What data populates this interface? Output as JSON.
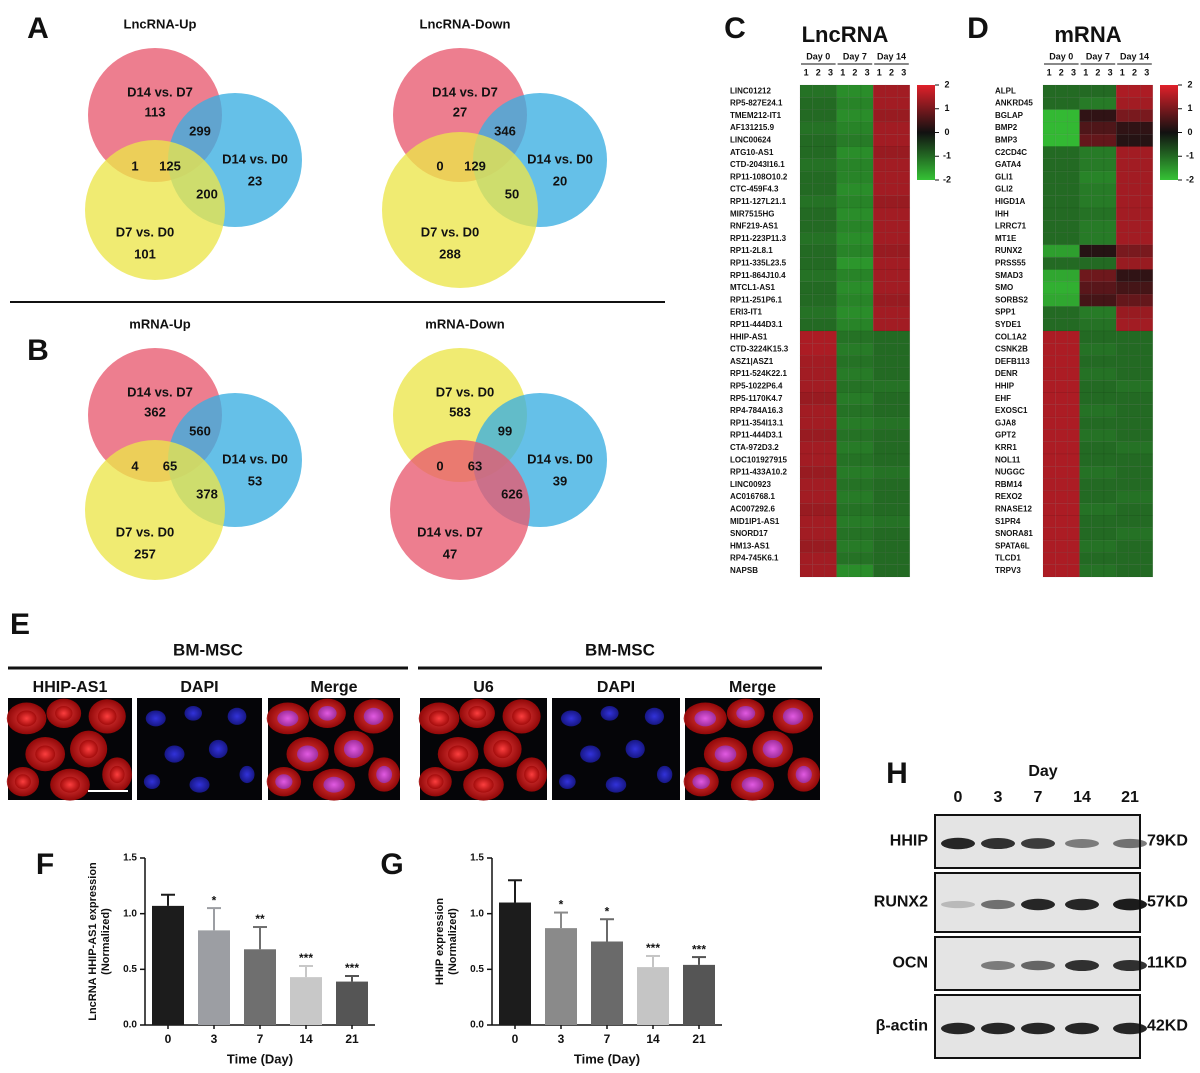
{
  "panels": {
    "A": {
      "letter": "A",
      "venns": [
        {
          "title": "LncRNA-Up",
          "sets": [
            {
              "label": "D14 vs. D7",
              "count": 113,
              "color": "#e85a70"
            },
            {
              "label": "D14 vs. D0",
              "count": 23,
              "color": "#3aaee2"
            },
            {
              "label": "D7 vs. D0",
              "count": 101,
              "color": "#ece64a"
            }
          ],
          "overlaps": [
            299,
            1,
            125,
            200
          ]
        },
        {
          "title": "LncRNA-Down",
          "sets": [
            {
              "label": "D14 vs. D7",
              "count": 27,
              "color": "#e85a70"
            },
            {
              "label": "D14 vs. D0",
              "count": 20,
              "color": "#3aaee2"
            },
            {
              "label": "D7 vs. D0",
              "count": 288,
              "color": "#ece64a"
            }
          ],
          "overlaps": [
            346,
            0,
            129,
            50
          ]
        }
      ]
    },
    "B": {
      "letter": "B",
      "venns": [
        {
          "title": "mRNA-Up",
          "sets": [
            {
              "label": "D14 vs. D7",
              "count": 362,
              "color": "#e85a70"
            },
            {
              "label": "D14 vs. D0",
              "count": 53,
              "color": "#3aaee2"
            },
            {
              "label": "D7 vs. D0",
              "count": 257,
              "color": "#ece64a"
            }
          ],
          "overlaps": [
            560,
            4,
            65,
            378
          ]
        },
        {
          "title": "mRNA-Down",
          "sets": [
            {
              "label": "D7 vs. D0",
              "count": 583,
              "color": "#ece64a"
            },
            {
              "label": "D14 vs. D0",
              "count": 39,
              "color": "#3aaee2"
            },
            {
              "label": "D14 vs. D7",
              "count": 47,
              "color": "#e85a70"
            }
          ],
          "overlaps": [
            99,
            0,
            63,
            626
          ]
        }
      ]
    },
    "C": {
      "letter": "C",
      "title": "LncRNA",
      "groups": [
        "Day 0",
        "Day 7",
        "Day 14"
      ],
      "replicates": [
        "1",
        "2",
        "3"
      ],
      "rows": [
        "LINC01212",
        "RP5-827E24.1",
        "TMEM212-IT1",
        "AF131215.9",
        "LINC00624",
        "ATG10-AS1",
        "CTD-2043I16.1",
        "RP11-108O10.2",
        "CTC-459F4.3",
        "RP11-127L21.1",
        "MIR7515HG",
        "RNF219-AS1",
        "RP11-223P11.3",
        "RP11-2L8.1",
        "RP11-335L23.5",
        "RP11-864J10.4",
        "MTCL1-AS1",
        "RP11-251P6.1",
        "ERI3-IT1",
        "RP11-444D3.1",
        "HHIP-AS1",
        "CTD-3224K15.3",
        "ASZ1|ASZ1",
        "RP11-524K22.1",
        "RP5-1022P6.4",
        "RP5-1170K4.7",
        "RP4-784A16.3",
        "RP11-354I13.1",
        "RP11-444D3.1",
        "CTA-972D3.2",
        "LOC101927915",
        "RP11-433A10.2",
        "LINC00923",
        "AC016768.1",
        "AC007292.6",
        "MID1IP1-AS1",
        "SNORD17",
        "HM13-AS1",
        "RP4-745K6.1",
        "NAPSB"
      ],
      "values": [
        [
          -1.1,
          -1.4,
          1.4
        ],
        [
          -1,
          -1.3,
          1.4
        ],
        [
          -1,
          -1.4,
          1.3
        ],
        [
          -1.1,
          -1.3,
          1.4
        ],
        [
          -1,
          -1.2,
          1.4
        ],
        [
          -1,
          -1.4,
          1.3
        ],
        [
          -1.1,
          -1.3,
          1.4
        ],
        [
          -1,
          -1.3,
          1.4
        ],
        [
          -1,
          -1.4,
          1.4
        ],
        [
          -1.1,
          -1.3,
          1.3
        ],
        [
          -1,
          -1.4,
          1.4
        ],
        [
          -1,
          -1.3,
          1.4
        ],
        [
          -1.1,
          -1.4,
          1.4
        ],
        [
          -1,
          -1.3,
          1.3
        ],
        [
          -1,
          -1.5,
          1.4
        ],
        [
          -1.1,
          -1.3,
          1.4
        ],
        [
          -1,
          -1.4,
          1.4
        ],
        [
          -1,
          -1.3,
          1.3
        ],
        [
          -1.1,
          -1.4,
          1.4
        ],
        [
          -1,
          -1.3,
          1.4
        ],
        [
          1.5,
          -1.1,
          -1
        ],
        [
          1.5,
          -1.2,
          -1
        ],
        [
          1.4,
          -1.1,
          -1
        ],
        [
          1.4,
          -1.2,
          -1
        ],
        [
          1.4,
          -1.1,
          -1.1
        ],
        [
          1.3,
          -1.2,
          -1
        ],
        [
          1.4,
          -1.1,
          -1
        ],
        [
          1.4,
          -1.2,
          -1.1
        ],
        [
          1.3,
          -1.1,
          -1
        ],
        [
          1.4,
          -1.2,
          -1
        ],
        [
          1.4,
          -1.1,
          -1
        ],
        [
          1.3,
          -1.2,
          -1.1
        ],
        [
          1.4,
          -1.1,
          -1
        ],
        [
          1.4,
          -1.2,
          -1
        ],
        [
          1.3,
          -1.1,
          -1
        ],
        [
          1.4,
          -1.2,
          -1.1
        ],
        [
          1.4,
          -1.1,
          -1
        ],
        [
          1.3,
          -1.2,
          -1
        ],
        [
          1.4,
          -1.1,
          -1
        ],
        [
          1.4,
          -1.4,
          -1
        ]
      ],
      "clim": [
        -2,
        2
      ],
      "colorbar_ticks": [
        2,
        1,
        0,
        -1,
        -2
      ],
      "colors": [
        "#35c235",
        "#111111",
        "#e0202a"
      ]
    },
    "D": {
      "letter": "D",
      "title": "mRNA",
      "groups": [
        "Day 0",
        "Day 7",
        "Day 14"
      ],
      "replicates": [
        "1",
        "2",
        "3"
      ],
      "rows": [
        "ALPL",
        "ANKRD45",
        "BGLAP",
        "BMP2",
        "BMP3",
        "C2CD4C",
        "GATA4",
        "GLI1",
        "GLI2",
        "HIGD1A",
        "IHH",
        "LRRC71",
        "MT1E",
        "RUNX2",
        "PRSS55",
        "SMAD3",
        "SMO",
        "SORBS2",
        "SPP1",
        "SYDE1",
        "COL1A2",
        "CSNK2B",
        "DEFB113",
        "DENR",
        "HHIP",
        "EHF",
        "EXOSC1",
        "GJA8",
        "GPT2",
        "KRR1",
        "NOL11",
        "NUGGC",
        "RBM14",
        "REXO2",
        "RNASE12",
        "S1PR4",
        "SNORA81",
        "SPATA6L",
        "TLCD1",
        "TRPV3"
      ],
      "values": [
        [
          -1,
          -1,
          1.5
        ],
        [
          -1,
          -1.2,
          1.4
        ],
        [
          -1.9,
          0.3,
          1
        ],
        [
          -1.9,
          0.6,
          0.3
        ],
        [
          -1.9,
          0.8,
          0.2
        ],
        [
          -1,
          -1.2,
          1.4
        ],
        [
          -1,
          -1.2,
          1.4
        ],
        [
          -1,
          -1.3,
          1.4
        ],
        [
          -1,
          -1.2,
          1.4
        ],
        [
          -1,
          -1.2,
          1.4
        ],
        [
          -1,
          -1.1,
          1.4
        ],
        [
          -1,
          -1.2,
          1.4
        ],
        [
          -1,
          -1.2,
          1.4
        ],
        [
          -1.6,
          0.2,
          1
        ],
        [
          -1,
          -1,
          1.3
        ],
        [
          -1.7,
          0.9,
          0.3
        ],
        [
          -1.8,
          0.7,
          0.5
        ],
        [
          -1.7,
          0.5,
          0.8
        ],
        [
          -1,
          -1.2,
          1.3
        ],
        [
          -1,
          -1.1,
          1.4
        ],
        [
          1.5,
          -1,
          -1
        ],
        [
          1.5,
          -1.1,
          -1
        ],
        [
          1.5,
          -1,
          -1
        ],
        [
          1.5,
          -1.1,
          -1
        ],
        [
          1.5,
          -1,
          -1.1
        ],
        [
          1.5,
          -1,
          -1
        ],
        [
          1.5,
          -1.1,
          -1
        ],
        [
          1.5,
          -1,
          -1
        ],
        [
          1.5,
          -1.1,
          -1
        ],
        [
          1.5,
          -1,
          -1.1
        ],
        [
          1.5,
          -1,
          -1
        ],
        [
          1.5,
          -1.1,
          -1
        ],
        [
          1.5,
          -1,
          -1
        ],
        [
          1.5,
          -1,
          -1.1
        ],
        [
          1.5,
          -1.1,
          -1
        ],
        [
          1.5,
          -1,
          -1
        ],
        [
          1.5,
          -1,
          -1.1
        ],
        [
          1.5,
          -1.1,
          -1
        ],
        [
          1.5,
          -1,
          -1
        ],
        [
          1.5,
          -1.1,
          -1
        ]
      ],
      "clim": [
        -2,
        2
      ],
      "colorbar_ticks": [
        2,
        1,
        0,
        -1,
        -2
      ],
      "colors": [
        "#35c235",
        "#111111",
        "#e0202a"
      ]
    },
    "E": {
      "letter": "E",
      "groups": [
        {
          "title": "BM-MSC",
          "images": [
            "HHIP-AS1",
            "DAPI",
            "Merge"
          ]
        },
        {
          "title": "BM-MSC",
          "images": [
            "U6",
            "DAPI",
            "Merge"
          ]
        }
      ]
    },
    "H": {
      "letter": "H",
      "axis_title": "Day",
      "lanes": [
        "0",
        "3",
        "7",
        "14",
        "21"
      ],
      "proteins": [
        {
          "name": "HHIP",
          "size": "79KD"
        },
        {
          "name": "RUNX2",
          "size": "57KD"
        },
        {
          "name": "OCN",
          "size": "11KD"
        },
        {
          "name": "β-actin",
          "size": "42KD"
        }
      ]
    }
  },
  "chart_data": [
    {
      "type": "bar",
      "panel": "F",
      "y_label": [
        "LncRNA HHIP-AS1 expression",
        "(Normalized)"
      ],
      "x_label": "Time (Day)",
      "categories": [
        "0",
        "3",
        "7",
        "14",
        "21"
      ],
      "values": [
        1.07,
        0.85,
        0.68,
        0.43,
        0.39
      ],
      "errors": [
        0.1,
        0.2,
        0.2,
        0.1,
        0.05
      ],
      "annotations": [
        null,
        "*",
        "**",
        "***",
        "***"
      ],
      "colors": [
        "#1c1c1c",
        "#9c9ea3",
        "#6f6f6f",
        "#c8c8c8",
        "#555555"
      ],
      "ylim": [
        0,
        1.5
      ],
      "yticks": [
        {
          "value": 0,
          "label": "0.0"
        },
        0.5,
        {
          "value": 1,
          "label": "1.0"
        },
        1.5
      ]
    },
    {
      "type": "bar",
      "panel": "G",
      "y_label": [
        "HHIP expression",
        "(Normalized)"
      ],
      "x_label": "Time (Day)",
      "categories": [
        "0",
        "3",
        "7",
        "14",
        "21"
      ],
      "values": [
        1.1,
        0.87,
        0.75,
        0.52,
        0.54
      ],
      "errors": [
        0.2,
        0.14,
        0.2,
        0.1,
        0.07
      ],
      "annotations": [
        null,
        "*",
        "*",
        "***",
        "***"
      ],
      "colors": [
        "#1c1c1c",
        "#8a8a8a",
        "#6a6a6a",
        "#c5c5c5",
        "#555555"
      ],
      "ylim": [
        0,
        1.5
      ],
      "yticks": [
        {
          "value": 0,
          "label": "0.0"
        },
        0.5,
        {
          "value": 1,
          "label": "1.0"
        },
        1.5
      ]
    }
  ]
}
